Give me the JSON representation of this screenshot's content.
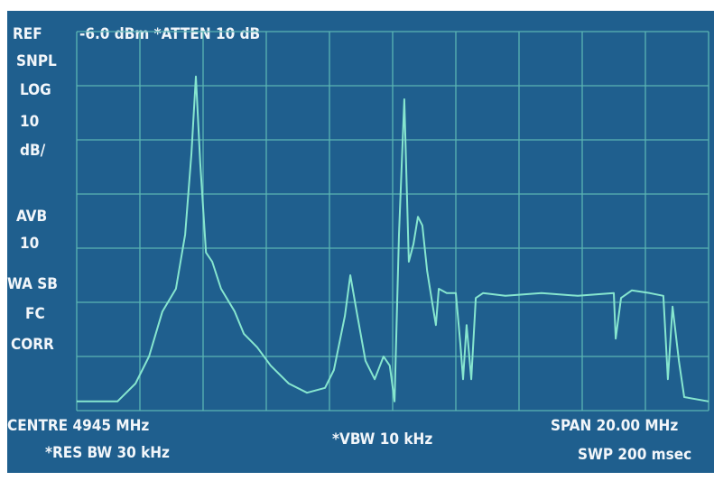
{
  "chart_data": {
    "type": "line",
    "header": {
      "ref": "REF",
      "ref_text": "-6.0 dBm *ATTEN 10 dB"
    },
    "side_labels": [
      "SNPL",
      "LOG",
      "10",
      "dB/",
      "AVB",
      "10",
      "WA SB",
      "FC",
      "CORR"
    ],
    "footer": [
      "CENTRE 4945 MHz",
      "*RES BW 30 kHz",
      "*VBW 10 kHz",
      "SPAN 20.00 MHz",
      "SWP 200 msec"
    ],
    "x": [
      4935,
      4936.29,
      4936.86,
      4937.29,
      4937.71,
      4938.14,
      4938.43,
      4938.63,
      4938.77,
      4938.91,
      4939.09,
      4939.29,
      4939.57,
      4940.0,
      4940.29,
      4940.71,
      4941.14,
      4941.71,
      4942.29,
      4942.86,
      4943.14,
      4943.49,
      4943.66,
      4943.86,
      4944.14,
      4944.43,
      4944.71,
      4944.91,
      4945.06,
      4945.2,
      4945.37,
      4945.51,
      4945.66,
      4945.8,
      4945.94,
      4946.09,
      4946.23,
      4946.37,
      4946.46,
      4946.71,
      4947.0,
      4947.14,
      4947.23,
      4947.34,
      4947.49,
      4947.63,
      4947.86,
      4948.57,
      4949.71,
      4950.86,
      4952.0,
      4952.06,
      4952.23,
      4952.57,
      4953.14,
      4953.57,
      4953.71,
      4953.86,
      4954.06,
      4954.23,
      4955.0
    ],
    "values": [
      -74.3,
      -74.3,
      -71.0,
      -66.0,
      -57.7,
      -53.5,
      -43.5,
      -28.5,
      -14.3,
      -30.2,
      -46.8,
      -48.5,
      -53.5,
      -57.7,
      -61.8,
      -64.3,
      -67.7,
      -71.0,
      -72.7,
      -71.8,
      -68.5,
      -58.5,
      -51.0,
      -57.7,
      -66.8,
      -70.2,
      -66.0,
      -67.7,
      -74.3,
      -43.5,
      -18.5,
      -48.5,
      -45.2,
      -40.2,
      -41.8,
      -50.2,
      -55.2,
      -60.2,
      -53.5,
      -54.3,
      -54.3,
      -63.5,
      -70.2,
      -60.2,
      -70.2,
      -55.2,
      -54.3,
      -54.8,
      -54.3,
      -54.8,
      -54.3,
      -62.7,
      -55.2,
      -53.8,
      -54.3,
      -54.8,
      -70.2,
      -56.8,
      -66.8,
      -73.5,
      -74.3
    ],
    "color": "#86e6cf",
    "xlim": [
      4935,
      4955
    ],
    "xticks": [
      4935,
      4937,
      4939,
      4941,
      4943,
      4945,
      4947,
      4949,
      4951,
      4953,
      4955
    ],
    "ylim": [
      -76,
      -6
    ],
    "yticks": [
      -6,
      -16,
      -26,
      -36,
      -46,
      -56,
      -66,
      -76
    ],
    "grid": true
  }
}
